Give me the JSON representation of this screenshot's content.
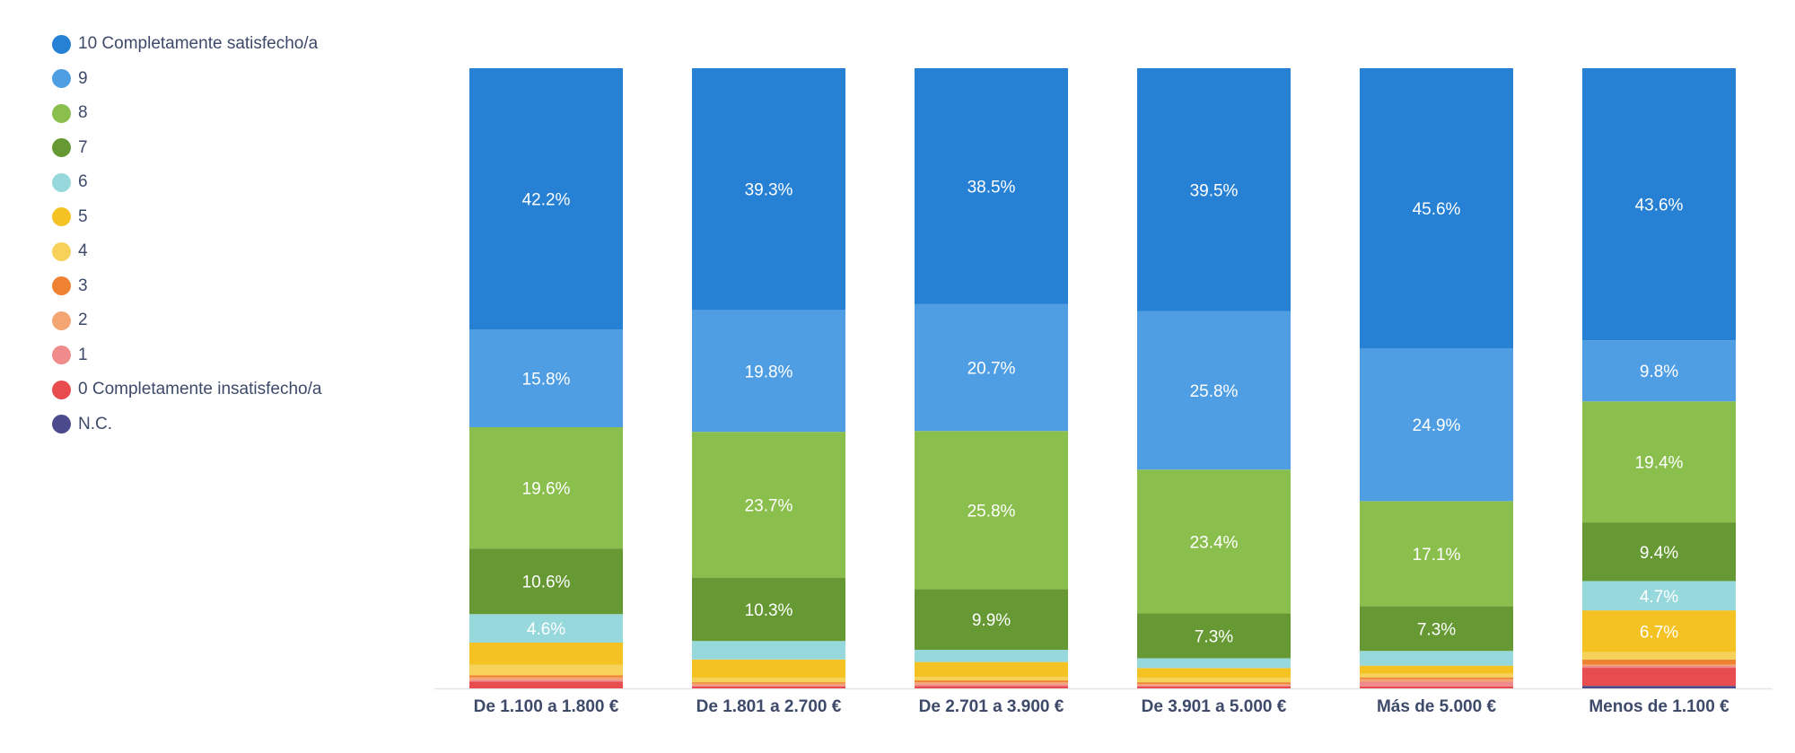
{
  "chart_data": {
    "type": "bar",
    "stacked": true,
    "normalized": true,
    "categories": [
      "De 1.100 a 1.800 €",
      "De 1.801 a 2.700 €",
      "De 2.701 a 3.900 €",
      "De 3.901 a 5.000 €",
      "Más de 5.000 €",
      "Menos de 1.100 €"
    ],
    "ylim": [
      0,
      100
    ],
    "grid": false,
    "legend_position": "top-left",
    "series": [
      {
        "name": "N.C.",
        "color": "#4a4a8c",
        "values": [
          0.0,
          0.0,
          0.0,
          0.0,
          0.0,
          0.4
        ]
      },
      {
        "name": "0 Completamente insatisfecho/a",
        "color": "#e84c4f",
        "values": [
          1.1,
          0.3,
          0.4,
          0.3,
          0.3,
          2.9
        ]
      },
      {
        "name": "1",
        "color": "#f08b8c",
        "values": [
          0.3,
          0.2,
          0.3,
          0.2,
          0.8,
          0.3
        ]
      },
      {
        "name": "2",
        "color": "#f4a672",
        "values": [
          0.4,
          0.3,
          0.3,
          0.2,
          0.4,
          0.2
        ]
      },
      {
        "name": "3",
        "color": "#ef8232",
        "values": [
          0.3,
          0.2,
          0.3,
          0.3,
          0.3,
          0.8
        ]
      },
      {
        "name": "4",
        "color": "#f7d25a",
        "values": [
          1.7,
          0.7,
          0.6,
          0.7,
          0.6,
          1.2
        ]
      },
      {
        "name": "5",
        "color": "#f5c223",
        "values": [
          3.6,
          3.0,
          2.4,
          1.6,
          1.3,
          6.7
        ]
      },
      {
        "name": "6",
        "color": "#97d8dc",
        "values": [
          4.6,
          3.0,
          2.0,
          1.6,
          2.4,
          4.7
        ]
      },
      {
        "name": "7",
        "color": "#669933",
        "values": [
          10.6,
          10.3,
          9.9,
          7.3,
          7.3,
          9.4
        ]
      },
      {
        "name": "8",
        "color": "#8bbf4d",
        "values": [
          19.6,
          23.7,
          25.8,
          23.4,
          17.1,
          19.4
        ]
      },
      {
        "name": "9",
        "color": "#4f9ee3",
        "values": [
          15.8,
          19.8,
          20.7,
          25.8,
          24.9,
          9.8
        ]
      },
      {
        "name": "10 Completamente satisfecho/a",
        "color": "#2680d4",
        "values": [
          42.2,
          39.3,
          38.5,
          39.5,
          45.6,
          43.6
        ]
      }
    ],
    "data_labels": [
      {
        "series": "10 Completamente satisfecho/a",
        "labels": [
          "42.2%",
          "39.3%",
          "38.5%",
          "39.5%",
          "45.6%",
          "43.6%"
        ]
      },
      {
        "series": "9",
        "labels": [
          "15.8%",
          "19.8%",
          "20.7%",
          "25.8%",
          "24.9%",
          "9.8%"
        ]
      },
      {
        "series": "8",
        "labels": [
          "19.6%",
          "23.7%",
          "25.8%",
          "23.4%",
          "17.1%",
          "19.4%"
        ]
      },
      {
        "series": "7",
        "labels": [
          "10.6%",
          "10.3%",
          "9.9%",
          "7.3%",
          "7.3%",
          "9.4%"
        ]
      },
      {
        "series": "6",
        "labels": [
          "4.6%",
          "",
          "",
          "",
          "",
          "4.7%"
        ]
      },
      {
        "series": "5",
        "labels": [
          "",
          "",
          "",
          "",
          "",
          "6.7%"
        ]
      }
    ],
    "legend_order": [
      "10 Completamente satisfecho/a",
      "9",
      "8",
      "7",
      "6",
      "5",
      "4",
      "3",
      "2",
      "1",
      "0 Completamente insatisfecho/a",
      "N.C."
    ]
  }
}
